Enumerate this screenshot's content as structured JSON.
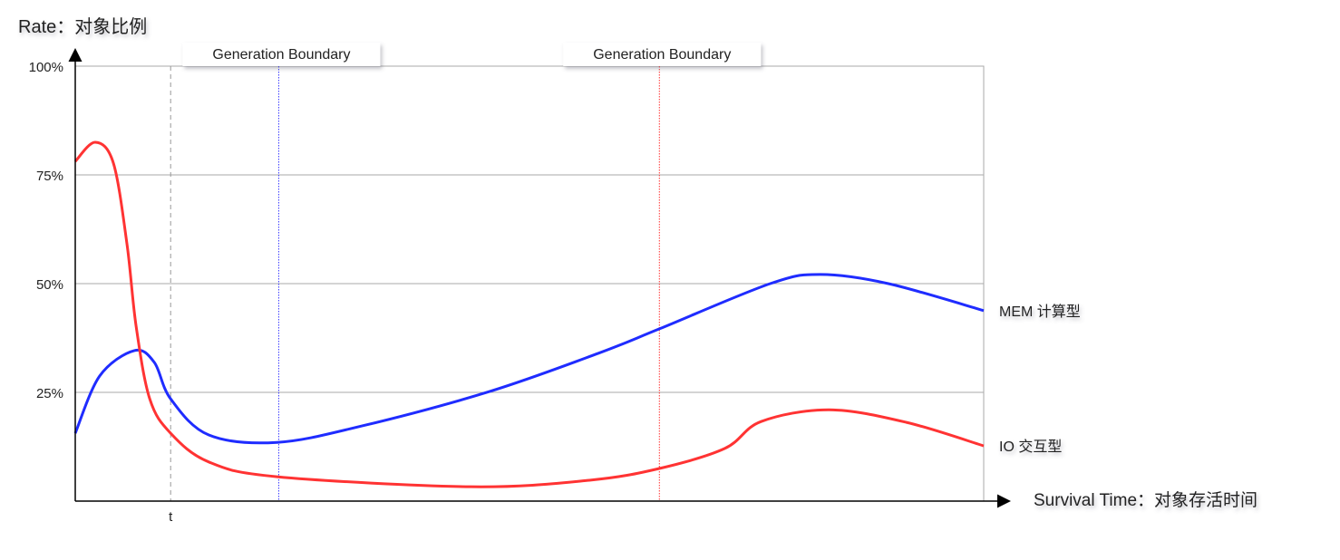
{
  "chart_data": {
    "type": "line",
    "ylabel": "Rate：对象比例",
    "xlabel": "Survival Time：对象存活时间",
    "xlim": [
      0,
      100
    ],
    "ylim": [
      0,
      100
    ],
    "yticks": [
      {
        "value": 100,
        "label": "100%"
      },
      {
        "value": 75,
        "label": "75%"
      },
      {
        "value": 50,
        "label": "50%"
      },
      {
        "value": 25,
        "label": "25%"
      }
    ],
    "xticks": [
      {
        "value": 10.5,
        "label": "t"
      }
    ],
    "grid": true,
    "markers": [
      {
        "x": 10.5,
        "color": "#999999",
        "style": "dashed",
        "label": ""
      },
      {
        "x": 22.4,
        "color": "#3a3aff",
        "style": "dotted",
        "label": "Generation Boundary"
      },
      {
        "x": 64.3,
        "color": "#ff3030",
        "style": "dotted",
        "label": "Generation Boundary"
      }
    ],
    "series": [
      {
        "name": "MEM 计算型",
        "color": "#1f2cff",
        "x": [
          0,
          2.7,
          6.5,
          8.7,
          10.5,
          14.7,
          22.2,
          31.6,
          45.6,
          57.6,
          64.3,
          76.5,
          82,
          89.5,
          100
        ],
        "y": [
          15.6,
          28.8,
          34.6,
          31.9,
          23.5,
          15.2,
          13.5,
          17.3,
          25.2,
          34,
          39.6,
          50,
          52.1,
          50,
          43.8
        ]
      },
      {
        "name": "IO 交互型",
        "color": "#ff3333",
        "x": [
          0,
          2.2,
          4.2,
          5.7,
          6.7,
          8.2,
          10.5,
          14.7,
          22.2,
          43.6,
          56.6,
          64.3,
          71.5,
          75.5,
          83,
          91.5,
          100
        ],
        "y": [
          78.1,
          82.5,
          77.7,
          59,
          40.2,
          23.5,
          15.6,
          9,
          5.6,
          3.3,
          4.8,
          7.5,
          12.1,
          18.3,
          21,
          18.1,
          12.7
        ]
      }
    ]
  }
}
